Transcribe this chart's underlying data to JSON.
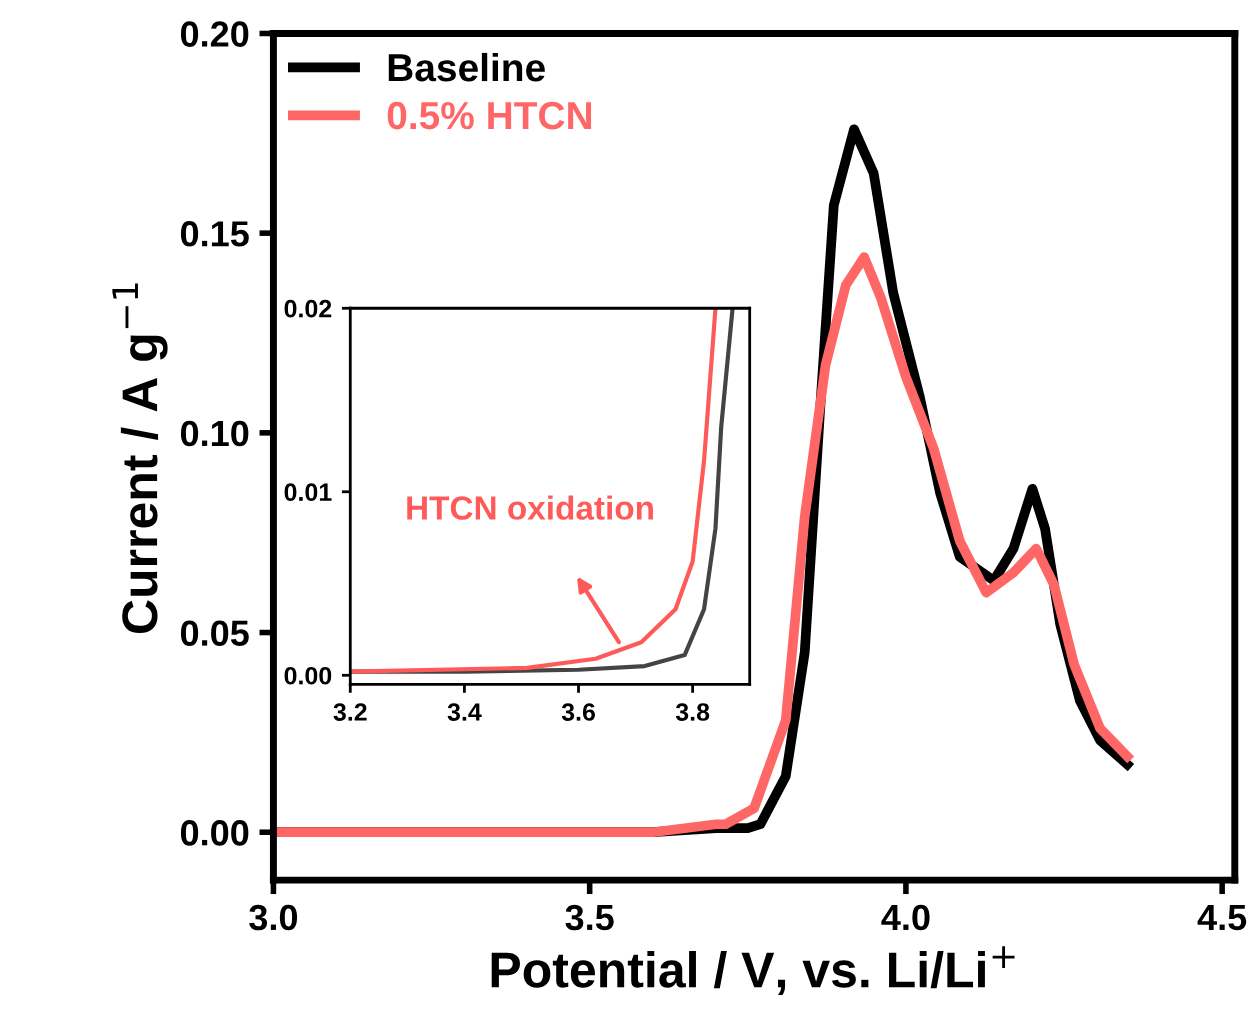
{
  "chart_data": [
    {
      "type": "line",
      "xlabel": "Potential / V, vs. Li/Li$^{+}$",
      "ylabel": "Current / A g$^{−1}$",
      "xlim": [
        3.0,
        4.52
      ],
      "xticks": [
        {
          "value": 3,
          "label": "3.0"
        },
        3.5,
        {
          "value": 4,
          "label": "4.0"
        },
        4.5
      ],
      "ylim": [
        -0.012,
        0.2
      ],
      "yticks": [
        {
          "value": 0,
          "label": "0.00"
        },
        0.05,
        {
          "value": 0.1,
          "label": "0.10"
        },
        0.15,
        {
          "value": 0.2,
          "label": "0.20"
        }
      ],
      "legend": "top left",
      "grid": false,
      "marker": "none",
      "line_style": "solid",
      "series": [
        {
          "name": "Baseline",
          "color": "#000000",
          "x": [
            3.0,
            3.3,
            3.6,
            3.7,
            3.75,
            3.77,
            3.81,
            3.84,
            3.864,
            3.886,
            3.918,
            3.949,
            3.98,
            4.022,
            4.054,
            4.085,
            4.139,
            4.17,
            4.2,
            4.22,
            4.244,
            4.275,
            4.307,
            4.35
          ],
          "values": [
            0.0,
            0.0,
            0.0,
            0.001,
            0.001,
            0.002,
            0.014,
            0.045,
            0.105,
            0.157,
            0.176,
            0.165,
            0.135,
            0.109,
            0.085,
            0.069,
            0.063,
            0.071,
            0.086,
            0.076,
            0.052,
            0.033,
            0.023,
            0.017
          ]
        },
        {
          "name": "0.5% HTCN",
          "color": "#ff6666",
          "x": [
            3.0,
            3.3,
            3.6,
            3.7,
            3.715,
            3.76,
            3.81,
            3.84,
            3.873,
            3.905,
            3.934,
            3.96,
            4.0,
            4.044,
            4.085,
            4.127,
            4.17,
            4.206,
            4.234,
            4.266,
            4.307,
            4.35
          ],
          "values": [
            0.0,
            0.0,
            0.0,
            0.002,
            0.002,
            0.006,
            0.028,
            0.079,
            0.117,
            0.137,
            0.144,
            0.134,
            0.114,
            0.096,
            0.073,
            0.06,
            0.065,
            0.071,
            0.062,
            0.042,
            0.026,
            0.019
          ]
        }
      ]
    },
    {
      "type": "line",
      "xlim": [
        3.2,
        3.9
      ],
      "xticks": [
        3.2,
        3.4,
        3.6,
        3.8
      ],
      "ylim": [
        -0.0005,
        0.02
      ],
      "yticks": [
        {
          "value": 0,
          "label": "0.00"
        },
        0.01,
        0.02
      ],
      "annotations": [
        "HTCN oxidation"
      ],
      "grid": false,
      "marker": "none",
      "line_style": "solid",
      "series": [
        {
          "color": "#444444",
          "x": [
            3.2,
            3.4,
            3.6,
            3.716,
            3.786,
            3.82,
            3.84,
            3.85,
            3.87
          ],
          "values": [
            0.0002,
            0.0002,
            0.0003,
            0.0005,
            0.0011,
            0.0036,
            0.008,
            0.0135,
            0.02
          ]
        },
        {
          "color": "#ff5a5a",
          "x": [
            3.2,
            3.51,
            3.63,
            3.71,
            3.77,
            3.8,
            3.82,
            3.84
          ],
          "values": [
            0.0002,
            0.0004,
            0.0009,
            0.0018,
            0.0036,
            0.0062,
            0.0117,
            0.02
          ]
        }
      ]
    }
  ]
}
